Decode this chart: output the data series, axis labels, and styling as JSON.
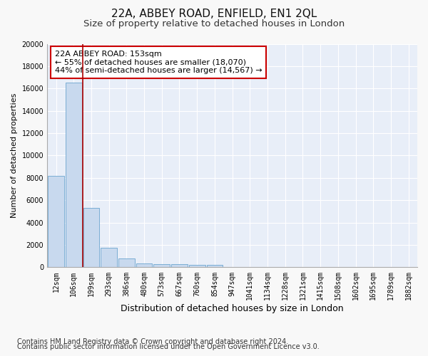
{
  "title1": "22A, ABBEY ROAD, ENFIELD, EN1 2QL",
  "title2": "Size of property relative to detached houses in London",
  "xlabel": "Distribution of detached houses by size in London",
  "ylabel": "Number of detached properties",
  "categories": [
    "12sqm",
    "106sqm",
    "199sqm",
    "293sqm",
    "386sqm",
    "480sqm",
    "573sqm",
    "667sqm",
    "760sqm",
    "854sqm",
    "947sqm",
    "1041sqm",
    "1134sqm",
    "1228sqm",
    "1321sqm",
    "1415sqm",
    "1508sqm",
    "1602sqm",
    "1695sqm",
    "1789sqm",
    "1882sqm"
  ],
  "values": [
    8200,
    16500,
    5300,
    1750,
    800,
    350,
    300,
    300,
    200,
    200,
    0,
    0,
    0,
    0,
    0,
    0,
    0,
    0,
    0,
    0,
    0
  ],
  "bar_color": "#c8d9ee",
  "bar_edge_color": "#7aadd4",
  "vline_x": 1.5,
  "vline_color": "#aa0000",
  "annotation_text": "22A ABBEY ROAD: 153sqm\n← 55% of detached houses are smaller (18,070)\n44% of semi-detached houses are larger (14,567) →",
  "annotation_box_color": "#ffffff",
  "annotation_box_edge": "#cc0000",
  "ylim": [
    0,
    20000
  ],
  "yticks": [
    0,
    2000,
    4000,
    6000,
    8000,
    10000,
    12000,
    14000,
    16000,
    18000,
    20000
  ],
  "footnote1": "Contains HM Land Registry data © Crown copyright and database right 2024.",
  "footnote2": "Contains public sector information licensed under the Open Government Licence v3.0.",
  "plot_bg_color": "#e8eef8",
  "fig_bg_color": "#f8f8f8",
  "grid_color": "#ffffff",
  "title1_fontsize": 11,
  "title2_fontsize": 9.5,
  "xlabel_fontsize": 9,
  "ylabel_fontsize": 8,
  "tick_fontsize": 7,
  "annotation_fontsize": 8,
  "footnote_fontsize": 7
}
